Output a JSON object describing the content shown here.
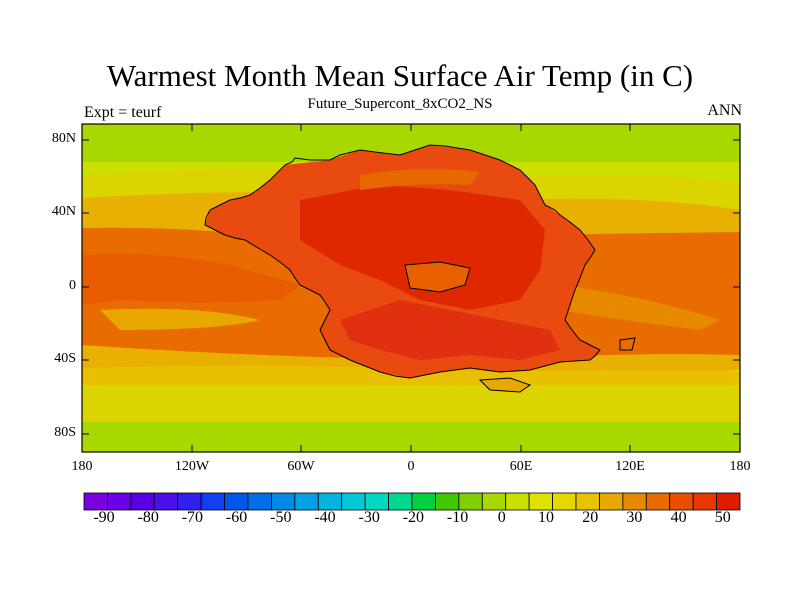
{
  "title": "Warmest Month Mean Surface Air Temp (in C)",
  "subtitle": "Future_Supercont_8xCO2_NS",
  "left_label": "Expt = teurf",
  "right_label": "ANN",
  "y_ticks": [
    "80N",
    "40N",
    "0",
    "40S",
    "80S"
  ],
  "x_ticks": [
    "180",
    "120W",
    "60W",
    "0",
    "60E",
    "120E",
    "180"
  ],
  "colorbar_labels": [
    "-90",
    "-80",
    "-70",
    "-60",
    "-50",
    "-40",
    "-30",
    "-20",
    "-10",
    "0",
    "10",
    "20",
    "30",
    "40",
    "50"
  ],
  "colorbar_colors": [
    "#7a00e0",
    "#6b00e6",
    "#5a00e8",
    "#4a10ea",
    "#3020f0",
    "#1040f0",
    "#0055ea",
    "#0070e8",
    "#0088e6",
    "#00a0e4",
    "#00b4e0",
    "#00c8d8",
    "#00d8c0",
    "#00d890",
    "#00d040",
    "#40c800",
    "#80d000",
    "#a8d800",
    "#cce000",
    "#dce400",
    "#e4d800",
    "#e8c400",
    "#e8a800",
    "#e88a00",
    "#e86a00",
    "#e85000",
    "#e83800",
    "#e01c00"
  ],
  "colors": {
    "polar": "#a8d800",
    "cool": "#cce000",
    "mild": "#dcd400",
    "warm": "#e8b000",
    "ocean": "#e86c00",
    "land": "#e84a10",
    "hot": "#e02800"
  }
}
